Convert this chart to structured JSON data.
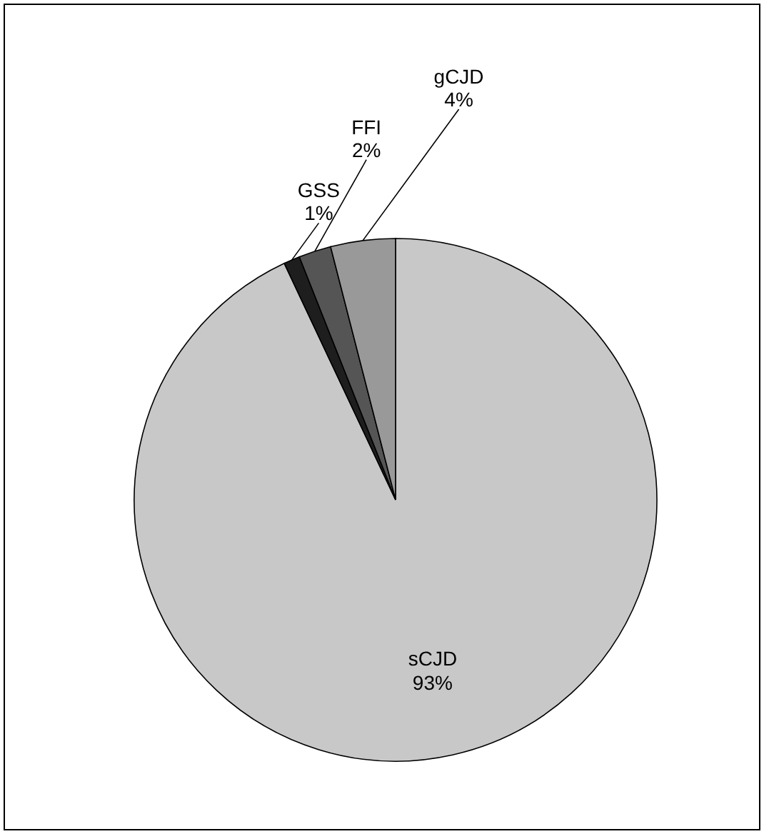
{
  "chart_data": {
    "type": "pie",
    "categories": [
      "sCJD",
      "GSS",
      "FFI",
      "gCJD"
    ],
    "values": [
      93,
      1,
      2,
      4
    ],
    "colors": [
      "#c8c8c8",
      "#1e1e1e",
      "#555555",
      "#999999"
    ],
    "value_labels": [
      "93%",
      "1%",
      "2%",
      "4%"
    ]
  }
}
